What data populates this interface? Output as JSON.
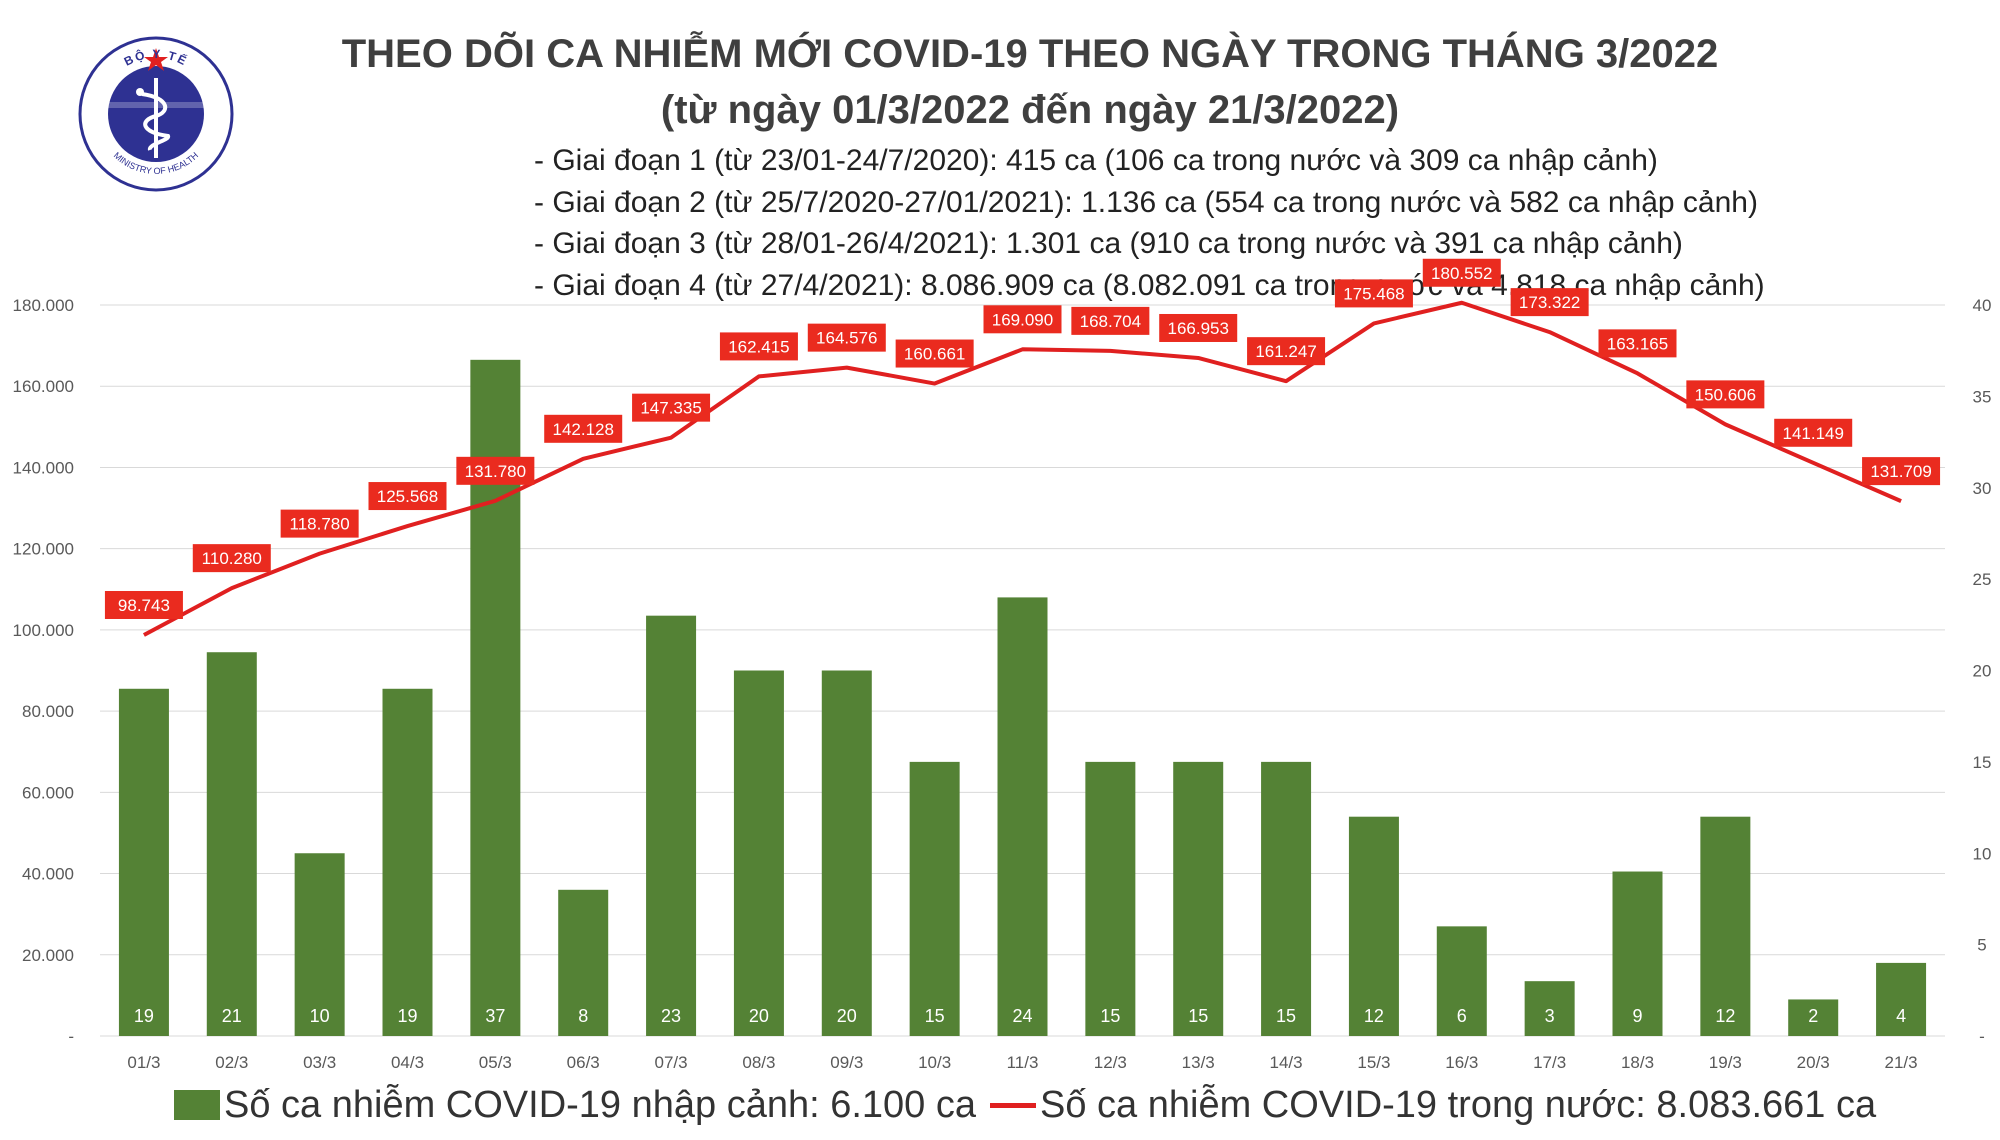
{
  "header": {
    "title_line1": "THEO DÕI CA NHIỄM MỚI COVID-19 THEO NGÀY TRONG THÁNG 3/2022",
    "title_line2": "(từ ngày 01/3/2022 đến ngày 21/3/2022)",
    "stages": [
      "- Giai đoạn 1 (từ 23/01-24/7/2020): 415 ca (106 ca trong nước và 309 ca nhập cảnh)",
      "- Giai đoạn 2 (từ 25/7/2020-27/01/2021): 1.136 ca (554 ca trong nước và 582 ca nhập cảnh)",
      "- Giai đoạn 3 (từ 28/01-26/4/2021): 1.301 ca (910 ca trong nước và 391 ca nhập cảnh)",
      "- Giai đoạn 4 (từ 27/4/2021): 8.086.909 ca (8.082.091 ca trong nước và 4.818 ca nhập cảnh)"
    ]
  },
  "logo": {
    "top_text": "BỘ Y TẾ",
    "bottom_text": "MINISTRY OF HEALTH"
  },
  "legend": {
    "bar_label": "Số ca nhiễm COVID-19 nhập cảnh: 6.100 ca",
    "line_label": "Số ca nhiễm COVID-19 trong nước: 8.083.661 ca"
  },
  "colors": {
    "bar": "#548235",
    "line": "#e02020",
    "label_bg": "#ea2b1f",
    "grid": "#d9d9d9"
  },
  "chart_data": {
    "type": "bar",
    "categories": [
      "01/3",
      "02/3",
      "03/3",
      "04/3",
      "05/3",
      "06/3",
      "07/3",
      "08/3",
      "09/3",
      "10/3",
      "11/3",
      "12/3",
      "13/3",
      "14/3",
      "15/3",
      "16/3",
      "17/3",
      "18/3",
      "19/3",
      "20/3",
      "21/3"
    ],
    "series": [
      {
        "name": "Số ca nhiễm COVID-19 nhập cảnh: 6.100 ca",
        "type": "bar",
        "axis": "right",
        "values": [
          19,
          21,
          10,
          19,
          37,
          8,
          23,
          20,
          20,
          15,
          24,
          15,
          15,
          15,
          12,
          6,
          3,
          9,
          12,
          2,
          4
        ],
        "labels": [
          "19",
          "21",
          "10",
          "19",
          "37",
          "8",
          "23",
          "20",
          "20",
          "15",
          "24",
          "15",
          "15",
          "15",
          "12",
          "6",
          "3",
          "9",
          "12",
          "2",
          "4"
        ]
      },
      {
        "name": "Số ca nhiễm COVID-19 trong nước: 8.083.661 ca",
        "type": "line",
        "axis": "left",
        "values": [
          98743,
          110280,
          118780,
          125568,
          131780,
          142128,
          147335,
          162415,
          164576,
          160661,
          169090,
          168704,
          166953,
          161247,
          175468,
          180552,
          173322,
          163165,
          150606,
          141149,
          131709
        ],
        "labels": [
          "98.743",
          "110.280",
          "118.780",
          "125.568",
          "131.780",
          "142.128",
          "147.335",
          "162.415",
          "164.576",
          "160.661",
          "169.090",
          "168.704",
          "166.953",
          "161.247",
          "175.468",
          "180.552",
          "173.322",
          "163.165",
          "150.606",
          "141.149",
          "131.709"
        ]
      }
    ],
    "left_axis": {
      "ylim": [
        0,
        180000
      ],
      "ticks": [
        0,
        20000,
        40000,
        60000,
        80000,
        100000,
        120000,
        140000,
        160000,
        180000
      ],
      "tick_labels": [
        "-",
        "20.000",
        "40.000",
        "60.000",
        "80.000",
        "100.000",
        "120.000",
        "140.000",
        "160.000",
        "180.000"
      ]
    },
    "right_axis": {
      "ylim": [
        0,
        40
      ],
      "ticks": [
        0,
        5,
        10,
        15,
        20,
        25,
        30,
        35,
        40
      ],
      "tick_labels": [
        "-",
        "5",
        "10",
        "15",
        "20",
        "25",
        "30",
        "35",
        "40"
      ]
    },
    "grid": true,
    "legend_position": "bottom"
  }
}
